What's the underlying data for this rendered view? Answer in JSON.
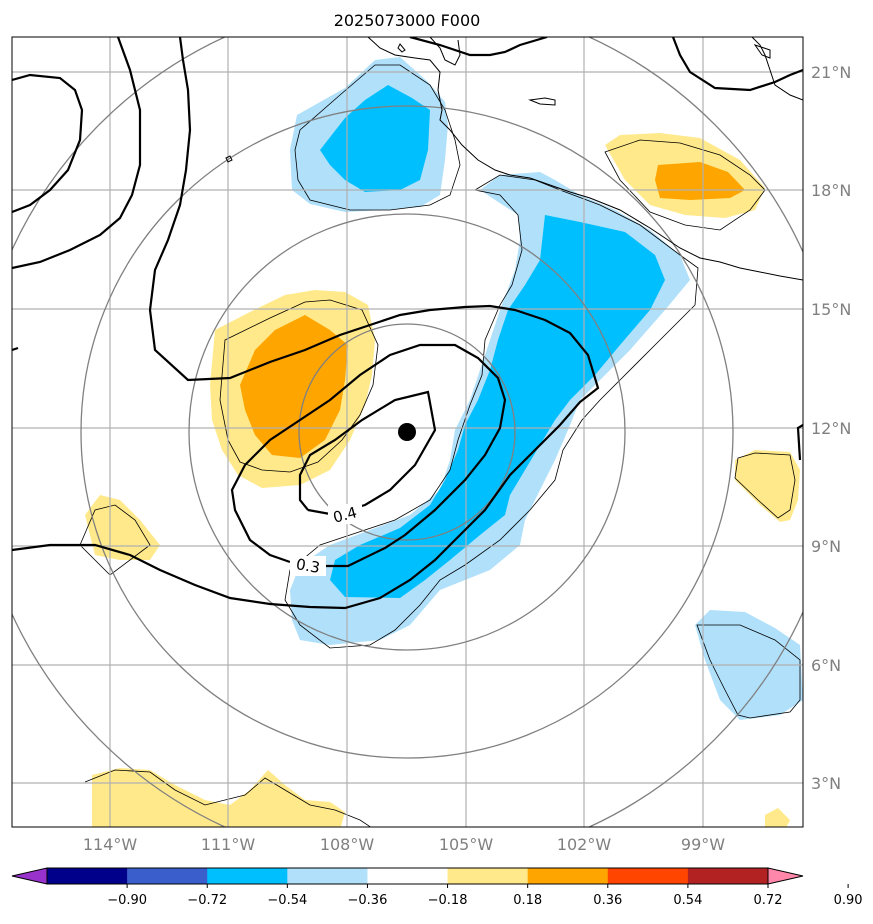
{
  "title": "2025073000 F000",
  "map": {
    "extent": {
      "lon_min": -117,
      "lon_max": -97.0,
      "lat_min": 2.0,
      "lat_max": 22.0
    },
    "gridlines": true,
    "center": {
      "lon": -106.5,
      "lat": 11.9
    },
    "lon_ticks": [
      {
        "value": -114,
        "label": "114°W"
      },
      {
        "value": -111,
        "label": "111°W"
      },
      {
        "value": -108,
        "label": "108°W"
      },
      {
        "value": -105,
        "label": "105°W"
      },
      {
        "value": -102,
        "label": "102°W"
      },
      {
        "value": -99,
        "label": "99°W"
      }
    ],
    "lat_ticks": [
      {
        "value": 3,
        "label": "3°N"
      },
      {
        "value": 6,
        "label": "6°N"
      },
      {
        "value": 9,
        "label": "9°N"
      },
      {
        "value": 12,
        "label": "12°N"
      },
      {
        "value": 15,
        "label": "15°N"
      },
      {
        "value": 18,
        "label": "18°N"
      },
      {
        "value": 21,
        "label": "21°N"
      }
    ],
    "contour_labels": [
      {
        "text": "0.4"
      },
      {
        "text": "0.3"
      }
    ]
  },
  "colorbar": {
    "levels": [
      "−0.90",
      "−0.72",
      "−0.54",
      "−0.36",
      "−0.18",
      "0.18",
      "0.36",
      "0.54",
      "0.72",
      "0.90"
    ],
    "colors": {
      "under": "#9932CC",
      "bins": [
        "#00008B",
        "#3A5FCD",
        "#00BFFF",
        "#B0E0FA",
        "#FFFFFF",
        "#FFE98A",
        "#FFA500",
        "#FF4500",
        "#B22222"
      ],
      "over": "#FF88AA"
    }
  },
  "colors": {
    "light_blue": "#B0E0FA",
    "blue": "#00BFFF",
    "light_yellow": "#FFE98A",
    "orange": "#FFA500",
    "range_rings": "#808080",
    "gridlines": "#B0B0B0"
  }
}
